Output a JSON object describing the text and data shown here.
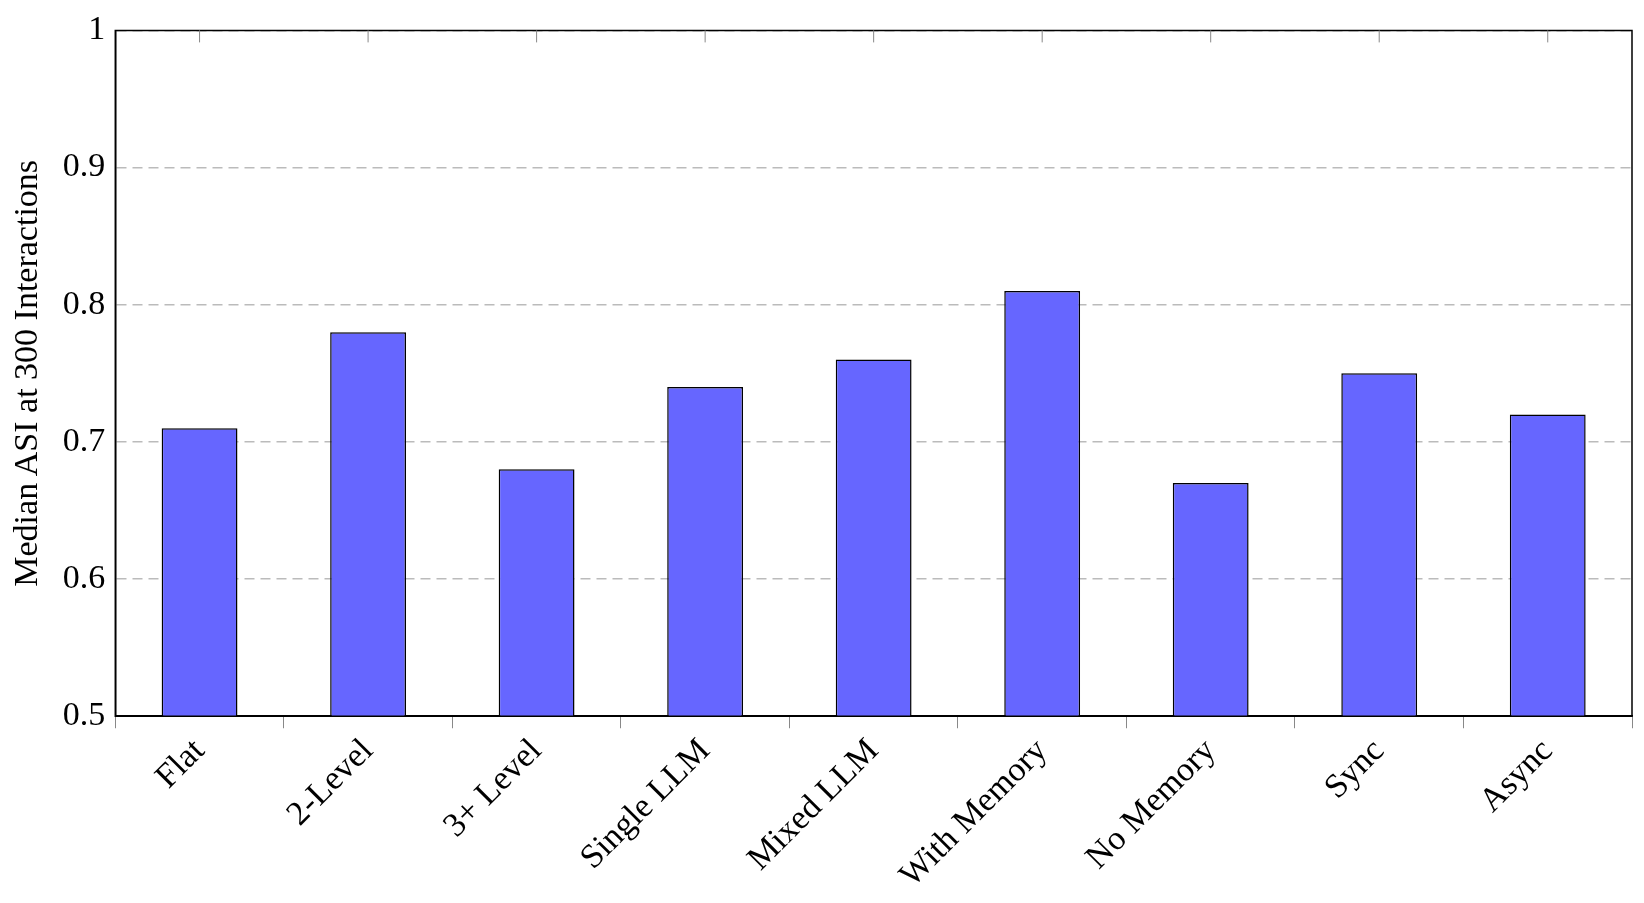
{
  "chart_data": {
    "type": "bar",
    "ylabel": "Median ASI at 300 Interactions",
    "categories": [
      "Flat",
      "2-Level",
      "3+ Level",
      "Single LLM",
      "Mixed LLM",
      "With Memory",
      "No Memory",
      "Sync",
      "Async"
    ],
    "values": [
      0.71,
      0.78,
      0.68,
      0.74,
      0.76,
      0.81,
      0.67,
      0.75,
      0.72
    ],
    "color": "#6666ff",
    "ylim": [
      0.5,
      1
    ],
    "yticks": [
      0.5,
      0.6,
      0.7,
      0.8,
      0.9,
      1
    ],
    "grid": "y"
  }
}
